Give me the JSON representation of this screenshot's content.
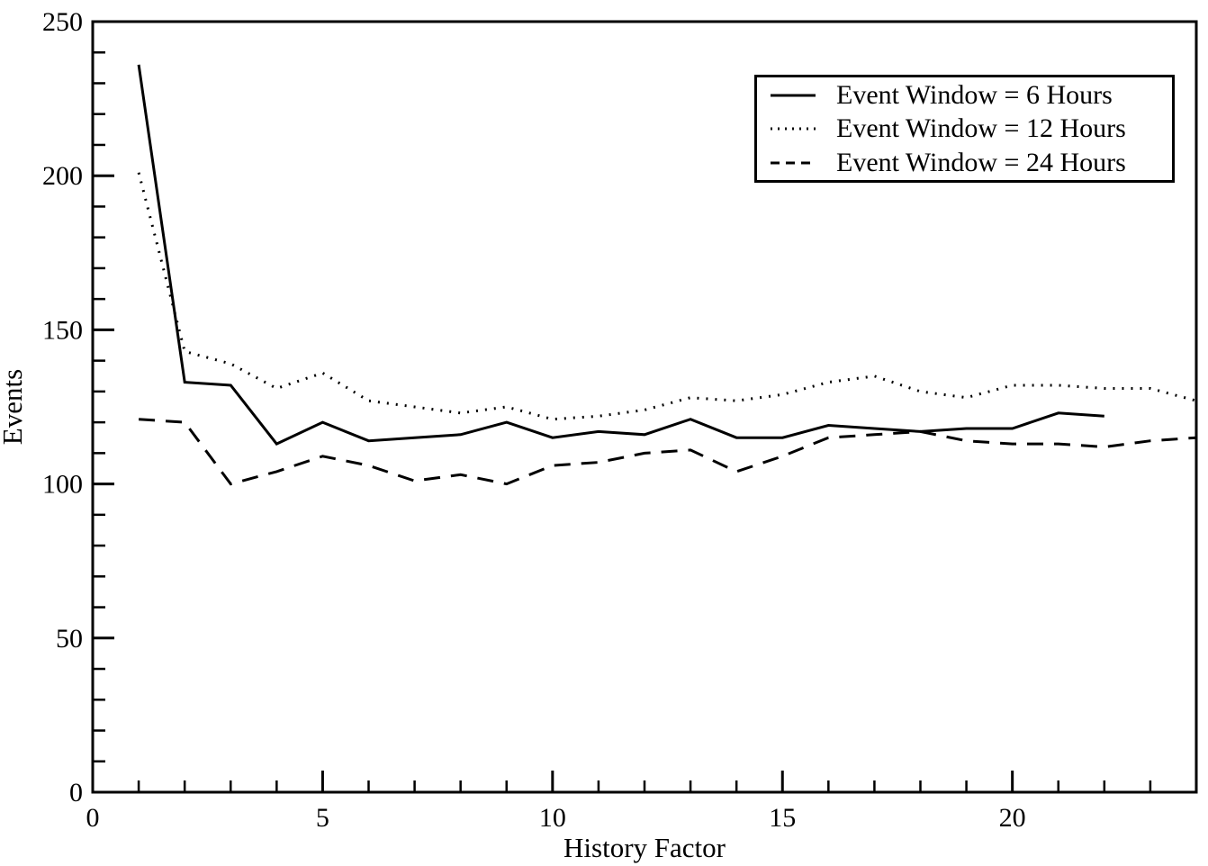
{
  "figure": {
    "background": "#ffffff",
    "line_color": "#000000",
    "text_color": "#000000"
  },
  "chart_data": {
    "type": "line",
    "title": "",
    "xlabel": "History Factor",
    "ylabel": "Events",
    "xlim": [
      0,
      24
    ],
    "ylim": [
      0,
      250
    ],
    "x_major_ticks": [
      0,
      5,
      10,
      15,
      20
    ],
    "x_tick_labels": [
      "0",
      "5",
      "10",
      "15",
      "20"
    ],
    "x_minor_step": 1,
    "y_major_ticks": [
      0,
      50,
      100,
      150,
      200,
      250
    ],
    "y_tick_labels": [
      "0",
      "50",
      "100",
      "150",
      "200",
      "250"
    ],
    "y_minor_step": 10,
    "grid": false,
    "legend_position": "top-right",
    "series": [
      {
        "name": "Event Window = 6 Hours",
        "style": "solid",
        "x": [
          1,
          2,
          3,
          4,
          5,
          6,
          7,
          8,
          9,
          10,
          11,
          12,
          13,
          14,
          15,
          16,
          17,
          18,
          19,
          20,
          21,
          22
        ],
        "values": [
          236,
          133,
          132,
          113,
          120,
          114,
          115,
          116,
          120,
          115,
          117,
          116,
          121,
          115,
          115,
          119,
          118,
          117,
          118,
          118,
          123,
          122
        ]
      },
      {
        "name": "Event Window = 12 Hours",
        "style": "dotted",
        "x": [
          1,
          2,
          3,
          4,
          5,
          6,
          7,
          8,
          9,
          10,
          11,
          12,
          13,
          14,
          15,
          16,
          17,
          18,
          19,
          20,
          21,
          22,
          23,
          24
        ],
        "values": [
          201,
          143,
          139,
          131,
          136,
          127,
          125,
          123,
          125,
          121,
          122,
          124,
          128,
          127,
          129,
          133,
          135,
          130,
          128,
          132,
          132,
          131,
          131,
          127
        ]
      },
      {
        "name": "Event Window = 24 Hours",
        "style": "dashed",
        "x": [
          1,
          2,
          3,
          4,
          5,
          6,
          7,
          8,
          9,
          10,
          11,
          12,
          13,
          14,
          15,
          16,
          17,
          18,
          19,
          20,
          21,
          22,
          23,
          24
        ],
        "values": [
          121,
          120,
          100,
          104,
          109,
          106,
          101,
          103,
          100,
          106,
          107,
          110,
          111,
          104,
          109,
          115,
          116,
          117,
          114,
          113,
          113,
          112,
          114,
          115
        ]
      }
    ]
  }
}
